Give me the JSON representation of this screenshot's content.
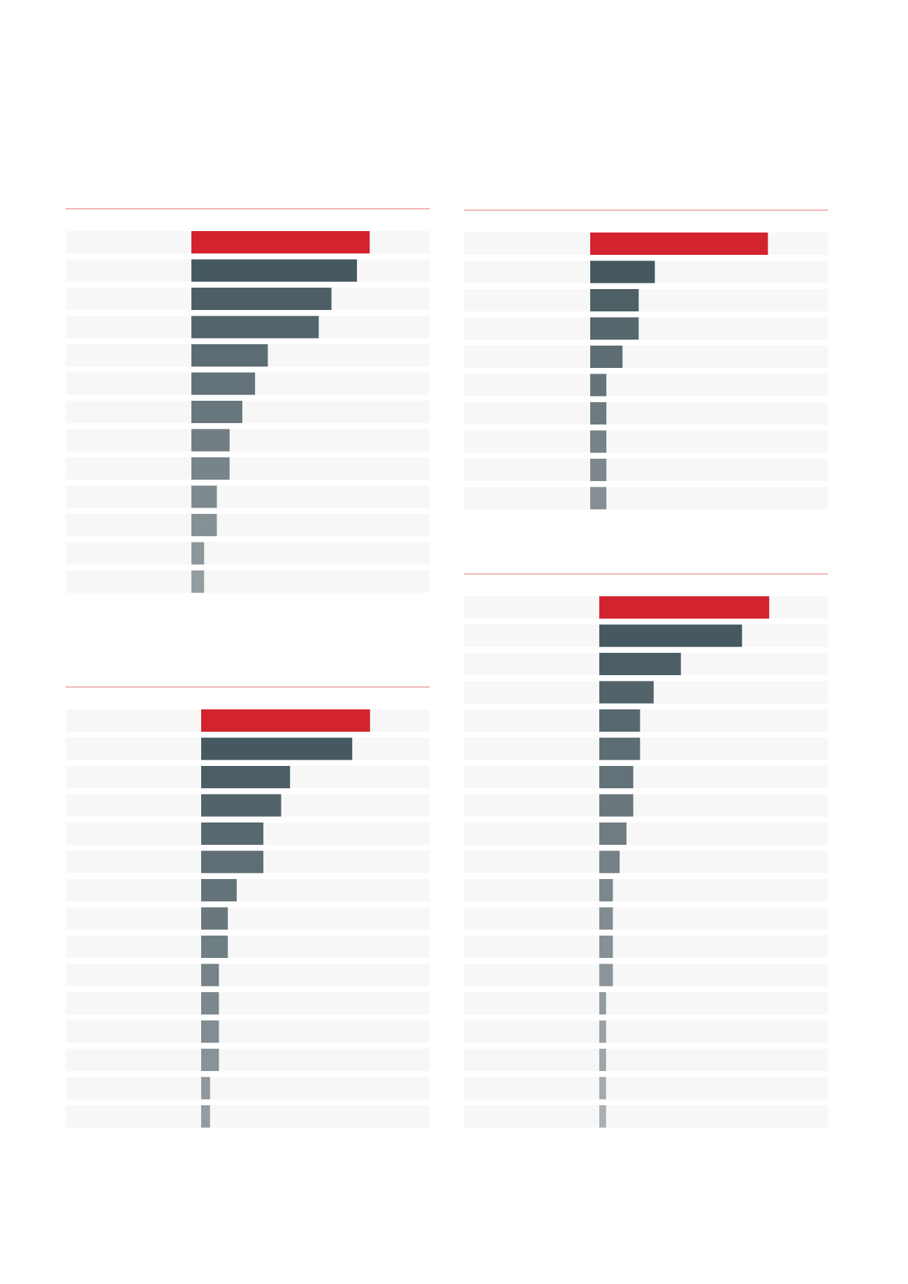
{
  "chart_data": [
    {
      "type": "bar",
      "orientation": "horizontal",
      "categories": [
        null,
        null,
        null,
        null,
        null,
        null,
        null,
        null,
        null,
        null,
        null,
        null,
        null
      ],
      "values": [
        14,
        13,
        11,
        10,
        6,
        5,
        4,
        3,
        3,
        2,
        2,
        1,
        1
      ],
      "xlim": [
        0,
        18.7
      ],
      "highlight_color": "#d2232f",
      "color_from": "#465960",
      "color_to": "#939da1",
      "track_color": "#f7f7f7",
      "rule_color": "#e8868c"
    },
    {
      "type": "bar",
      "orientation": "horizontal",
      "categories": [
        null,
        null,
        null,
        null,
        null,
        null,
        null,
        null,
        null,
        null
      ],
      "values": [
        11,
        4,
        3,
        3,
        2,
        1,
        1,
        1,
        1,
        1
      ],
      "xlim": [
        0,
        14.7
      ],
      "highlight_color": "#d2232f",
      "color_from": "#465960",
      "color_to": "#858f93",
      "track_color": "#f7f7f7",
      "rule_color": "#e8868c"
    },
    {
      "type": "bar",
      "orientation": "horizontal",
      "categories": [
        null,
        null,
        null,
        null,
        null,
        null,
        null,
        null,
        null,
        null,
        null,
        null,
        null,
        null,
        null
      ],
      "values": [
        19,
        17,
        10,
        9,
        7,
        7,
        4,
        3,
        3,
        2,
        2,
        2,
        2,
        1,
        1
      ],
      "xlim": [
        0,
        25.7
      ],
      "highlight_color": "#d2232f",
      "color_from": "#465960",
      "color_to": "#939da1",
      "track_color": "#f7f7f7",
      "rule_color": "#e8868c"
    },
    {
      "type": "bar",
      "orientation": "horizontal",
      "categories": [
        null,
        null,
        null,
        null,
        null,
        null,
        null,
        null,
        null,
        null,
        null,
        null,
        null,
        null,
        null,
        null,
        null,
        null,
        null
      ],
      "values": [
        25,
        21,
        12,
        8,
        6,
        6,
        5,
        5,
        4,
        3,
        2,
        2,
        2,
        2,
        1,
        1,
        1,
        1,
        1
      ],
      "xlim": [
        0,
        33.6
      ],
      "highlight_color": "#d2232f",
      "color_from": "#465960",
      "color_to": "#a9afb2",
      "track_color": "#f7f7f7",
      "rule_color": "#e8868c"
    }
  ]
}
